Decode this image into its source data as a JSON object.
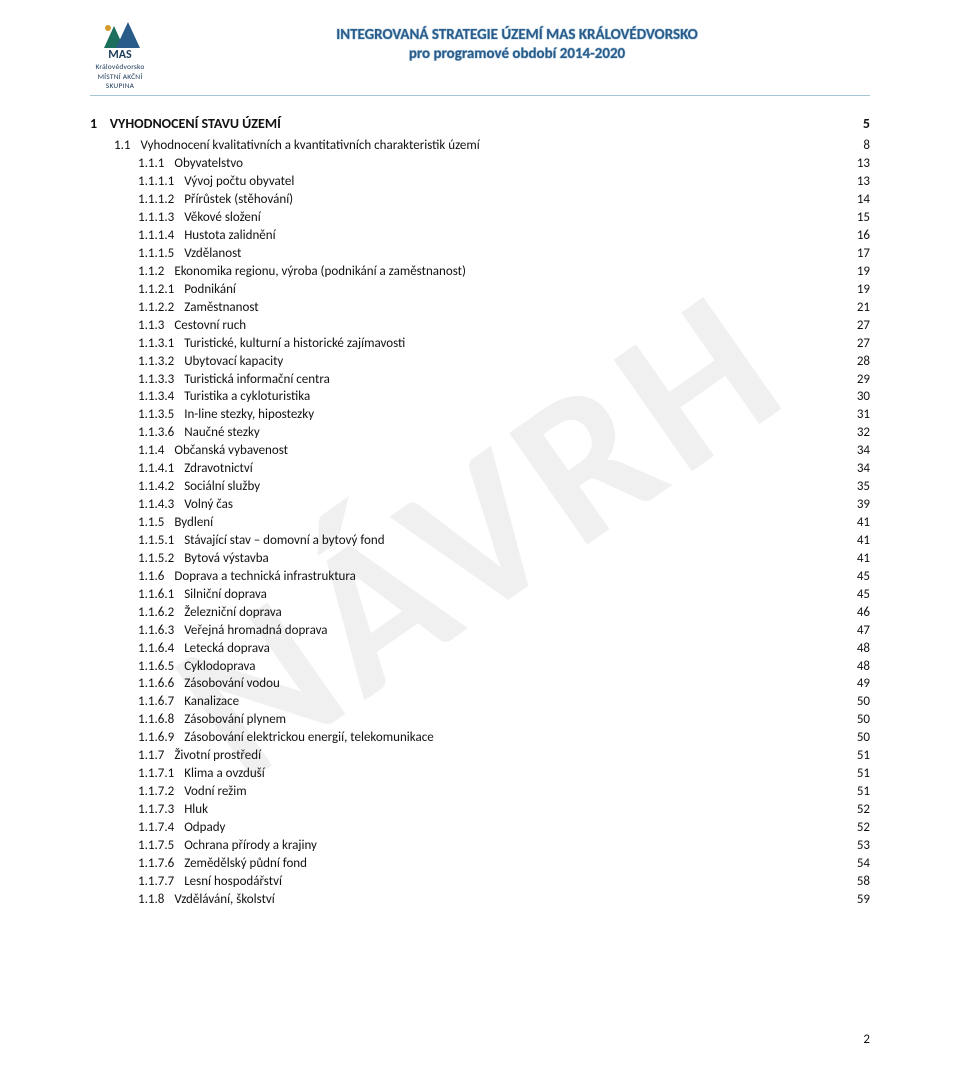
{
  "watermark": "NÁVRH",
  "header": {
    "logo_label": "MAS",
    "logo_sub": "Královédvorsko",
    "logo_bottom": "MÍSTNÍ AKČNÍ SKUPINA",
    "title_line1": "INTEGROVANÁ STRATEGIE ÚZEMÍ MAS KRÁLOVÉDVORSKO",
    "title_line2": "pro programové období 2014-2020"
  },
  "footer_page": "2",
  "toc": {
    "h1": {
      "num": "1",
      "title": "VYHODNOCENÍ STAVU ÚZEMÍ",
      "page": "5"
    },
    "rows": [
      {
        "lvl": 2,
        "num": "1.1",
        "title": "Vyhodnocení kvalitativních a kvantitativních charakteristik území",
        "page": "8"
      },
      {
        "lvl": 3,
        "num": "1.1.1",
        "title": "Obyvatelstvo",
        "page": "13"
      },
      {
        "lvl": 3,
        "num": "1.1.1.1",
        "title": "Vývoj počtu obyvatel",
        "page": "13"
      },
      {
        "lvl": 3,
        "num": "1.1.1.2",
        "title": "Přírůstek (stěhování)",
        "page": "14"
      },
      {
        "lvl": 3,
        "num": "1.1.1.3",
        "title": "Věkové složení",
        "page": "15"
      },
      {
        "lvl": 3,
        "num": "1.1.1.4",
        "title": "Hustota zalidnění",
        "page": "16"
      },
      {
        "lvl": 3,
        "num": "1.1.1.5",
        "title": "Vzdělanost",
        "page": "17"
      },
      {
        "lvl": 3,
        "num": "1.1.2",
        "title": "Ekonomika regionu, výroba (podnikání a zaměstnanost)",
        "page": "19"
      },
      {
        "lvl": 3,
        "num": "1.1.2.1",
        "title": "Podnikání",
        "page": "19"
      },
      {
        "lvl": 3,
        "num": "1.1.2.2",
        "title": "Zaměstnanost",
        "page": "21"
      },
      {
        "lvl": 3,
        "num": "1.1.3",
        "title": "Cestovní ruch",
        "page": "27"
      },
      {
        "lvl": 3,
        "num": "1.1.3.1",
        "title": "Turistické, kulturní a historické zajímavosti",
        "page": "27"
      },
      {
        "lvl": 3,
        "num": "1.1.3.2",
        "title": "Ubytovací kapacity",
        "page": "28"
      },
      {
        "lvl": 3,
        "num": "1.1.3.3",
        "title": "Turistická informační centra",
        "page": "29"
      },
      {
        "lvl": 3,
        "num": "1.1.3.4",
        "title": "Turistika a cykloturistika",
        "page": "30"
      },
      {
        "lvl": 3,
        "num": "1.1.3.5",
        "title": "In-line stezky, hipostezky",
        "page": "31"
      },
      {
        "lvl": 3,
        "num": "1.1.3.6",
        "title": "Naučné stezky",
        "page": "32"
      },
      {
        "lvl": 3,
        "num": "1.1.4",
        "title": "Občanská vybavenost",
        "page": "34"
      },
      {
        "lvl": 3,
        "num": "1.1.4.1",
        "title": "Zdravotnictví",
        "page": "34"
      },
      {
        "lvl": 3,
        "num": "1.1.4.2",
        "title": "Sociální služby",
        "page": "35"
      },
      {
        "lvl": 3,
        "num": "1.1.4.3",
        "title": "Volný čas",
        "page": "39"
      },
      {
        "lvl": 3,
        "num": "1.1.5",
        "title": "Bydlení",
        "page": "41"
      },
      {
        "lvl": 3,
        "num": "1.1.5.1",
        "title": "Stávající stav – domovní a bytový fond",
        "page": "41"
      },
      {
        "lvl": 3,
        "num": "1.1.5.2",
        "title": "Bytová výstavba",
        "page": "41"
      },
      {
        "lvl": 3,
        "num": "1.1.6",
        "title": "Doprava a technická infrastruktura",
        "page": "45"
      },
      {
        "lvl": 3,
        "num": "1.1.6.1",
        "title": "Silniční doprava",
        "page": "45"
      },
      {
        "lvl": 3,
        "num": "1.1.6.2",
        "title": "Železniční doprava",
        "page": "46"
      },
      {
        "lvl": 3,
        "num": "1.1.6.3",
        "title": "Veřejná hromadná doprava",
        "page": "47"
      },
      {
        "lvl": 3,
        "num": "1.1.6.4",
        "title": "Letecká doprava",
        "page": "48"
      },
      {
        "lvl": 3,
        "num": "1.1.6.5",
        "title": "Cyklodoprava",
        "page": "48"
      },
      {
        "lvl": 3,
        "num": "1.1.6.6",
        "title": "Zásobování vodou",
        "page": "49"
      },
      {
        "lvl": 3,
        "num": "1.1.6.7",
        "title": "Kanalizace",
        "page": "50"
      },
      {
        "lvl": 3,
        "num": "1.1.6.8",
        "title": "Zásobování plynem",
        "page": "50"
      },
      {
        "lvl": 3,
        "num": "1.1.6.9",
        "title": "Zásobování elektrickou energií, telekomunikace",
        "page": "50"
      },
      {
        "lvl": 3,
        "num": "1.1.7",
        "title": "Životní prostředí",
        "page": "51"
      },
      {
        "lvl": 3,
        "num": "1.1.7.1",
        "title": "Klima a ovzduší",
        "page": "51"
      },
      {
        "lvl": 3,
        "num": "1.1.7.2",
        "title": "Vodní režim",
        "page": "51"
      },
      {
        "lvl": 3,
        "num": "1.1.7.3",
        "title": "Hluk",
        "page": "52"
      },
      {
        "lvl": 3,
        "num": "1.1.7.4",
        "title": "Odpady",
        "page": "52"
      },
      {
        "lvl": 3,
        "num": "1.1.7.5",
        "title": "Ochrana přírody a krajiny",
        "page": "53"
      },
      {
        "lvl": 3,
        "num": "1.1.7.6",
        "title": "Zemědělský půdní fond",
        "page": "54"
      },
      {
        "lvl": 3,
        "num": "1.1.7.7",
        "title": "Lesní hospodářství",
        "page": "58"
      },
      {
        "lvl": 3,
        "num": "1.1.8",
        "title": "Vzdělávání, školství",
        "page": "59"
      }
    ]
  }
}
